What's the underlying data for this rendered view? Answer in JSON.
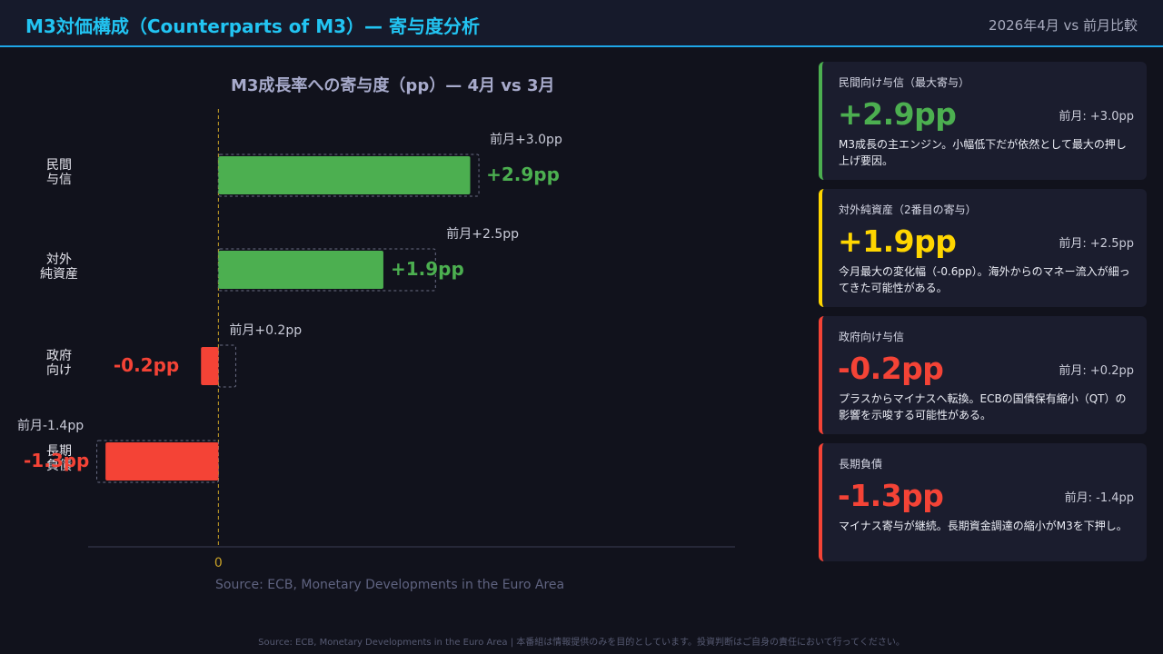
{
  "header": {
    "title": "M3対価構成（Counterparts of M3）— 寄与度分析",
    "subtitle": "2026年4月 vs 前月比較"
  },
  "chart_data": {
    "type": "bar",
    "orientation": "horizontal",
    "title": "M3成長率への寄与度（pp）— 4月 vs 3月",
    "source": "Source: ECB, Monetary Developments in the Euro Area",
    "categories": [
      [
        "民間",
        "与信"
      ],
      [
        "対外",
        "純資産"
      ],
      [
        "政府",
        "向け"
      ],
      [
        "長期",
        "負債"
      ]
    ],
    "series": [
      {
        "values": [
          2.9,
          1.9,
          -0.2,
          -1.3
        ]
      },
      {
        "values": [
          3.0,
          2.5,
          0.2,
          -1.4
        ]
      }
    ],
    "value_labels": [
      "+2.9pp",
      "+1.9pp",
      "-0.2pp",
      "-1.3pp"
    ],
    "prev_labels": [
      "前月+3.0pp",
      "前月+2.5pp",
      "前月+0.2pp",
      "前月-1.4pp"
    ],
    "zero_label": "0",
    "xlim": [
      -1.5,
      5.95
    ],
    "grid": false,
    "colors": {
      "positive": "#4caf50",
      "negative": "#f44336",
      "zero_line": "#c9a227"
    }
  },
  "cards": [
    {
      "label": "民間向け与信（最大寄与）",
      "value": "+2.9pp",
      "prev": "前月: +3.0pp",
      "note": "M3成長の主エンジン。小幅低下だが依然として最大の押し上げ要因。",
      "color": "#4caf50"
    },
    {
      "label": "対外純資産（2番目の寄与）",
      "value": "+1.9pp",
      "prev": "前月: +2.5pp",
      "note": "今月最大の変化幅（-0.6pp）。海外からのマネー流入が細ってきた可能性がある。",
      "color": "#ffd600"
    },
    {
      "label": "政府向け与信",
      "value": "-0.2pp",
      "prev": "前月: +0.2pp",
      "note": "プラスからマイナスへ転換。ECBの国債保有縮小（QT）の影響を示唆する可能性がある。",
      "color": "#f44336"
    },
    {
      "label": "長期負債",
      "value": "-1.3pp",
      "prev": "前月: -1.4pp",
      "note": "マイナス寄与が継続。長期資金調達の縮小がM3を下押し。",
      "color": "#f44336"
    }
  ],
  "footer": "Source: ECB, Monetary Developments in the Euro Area | 本番組は情報提供のみを目的としています。投資判断はご自身の責任において行ってください。"
}
